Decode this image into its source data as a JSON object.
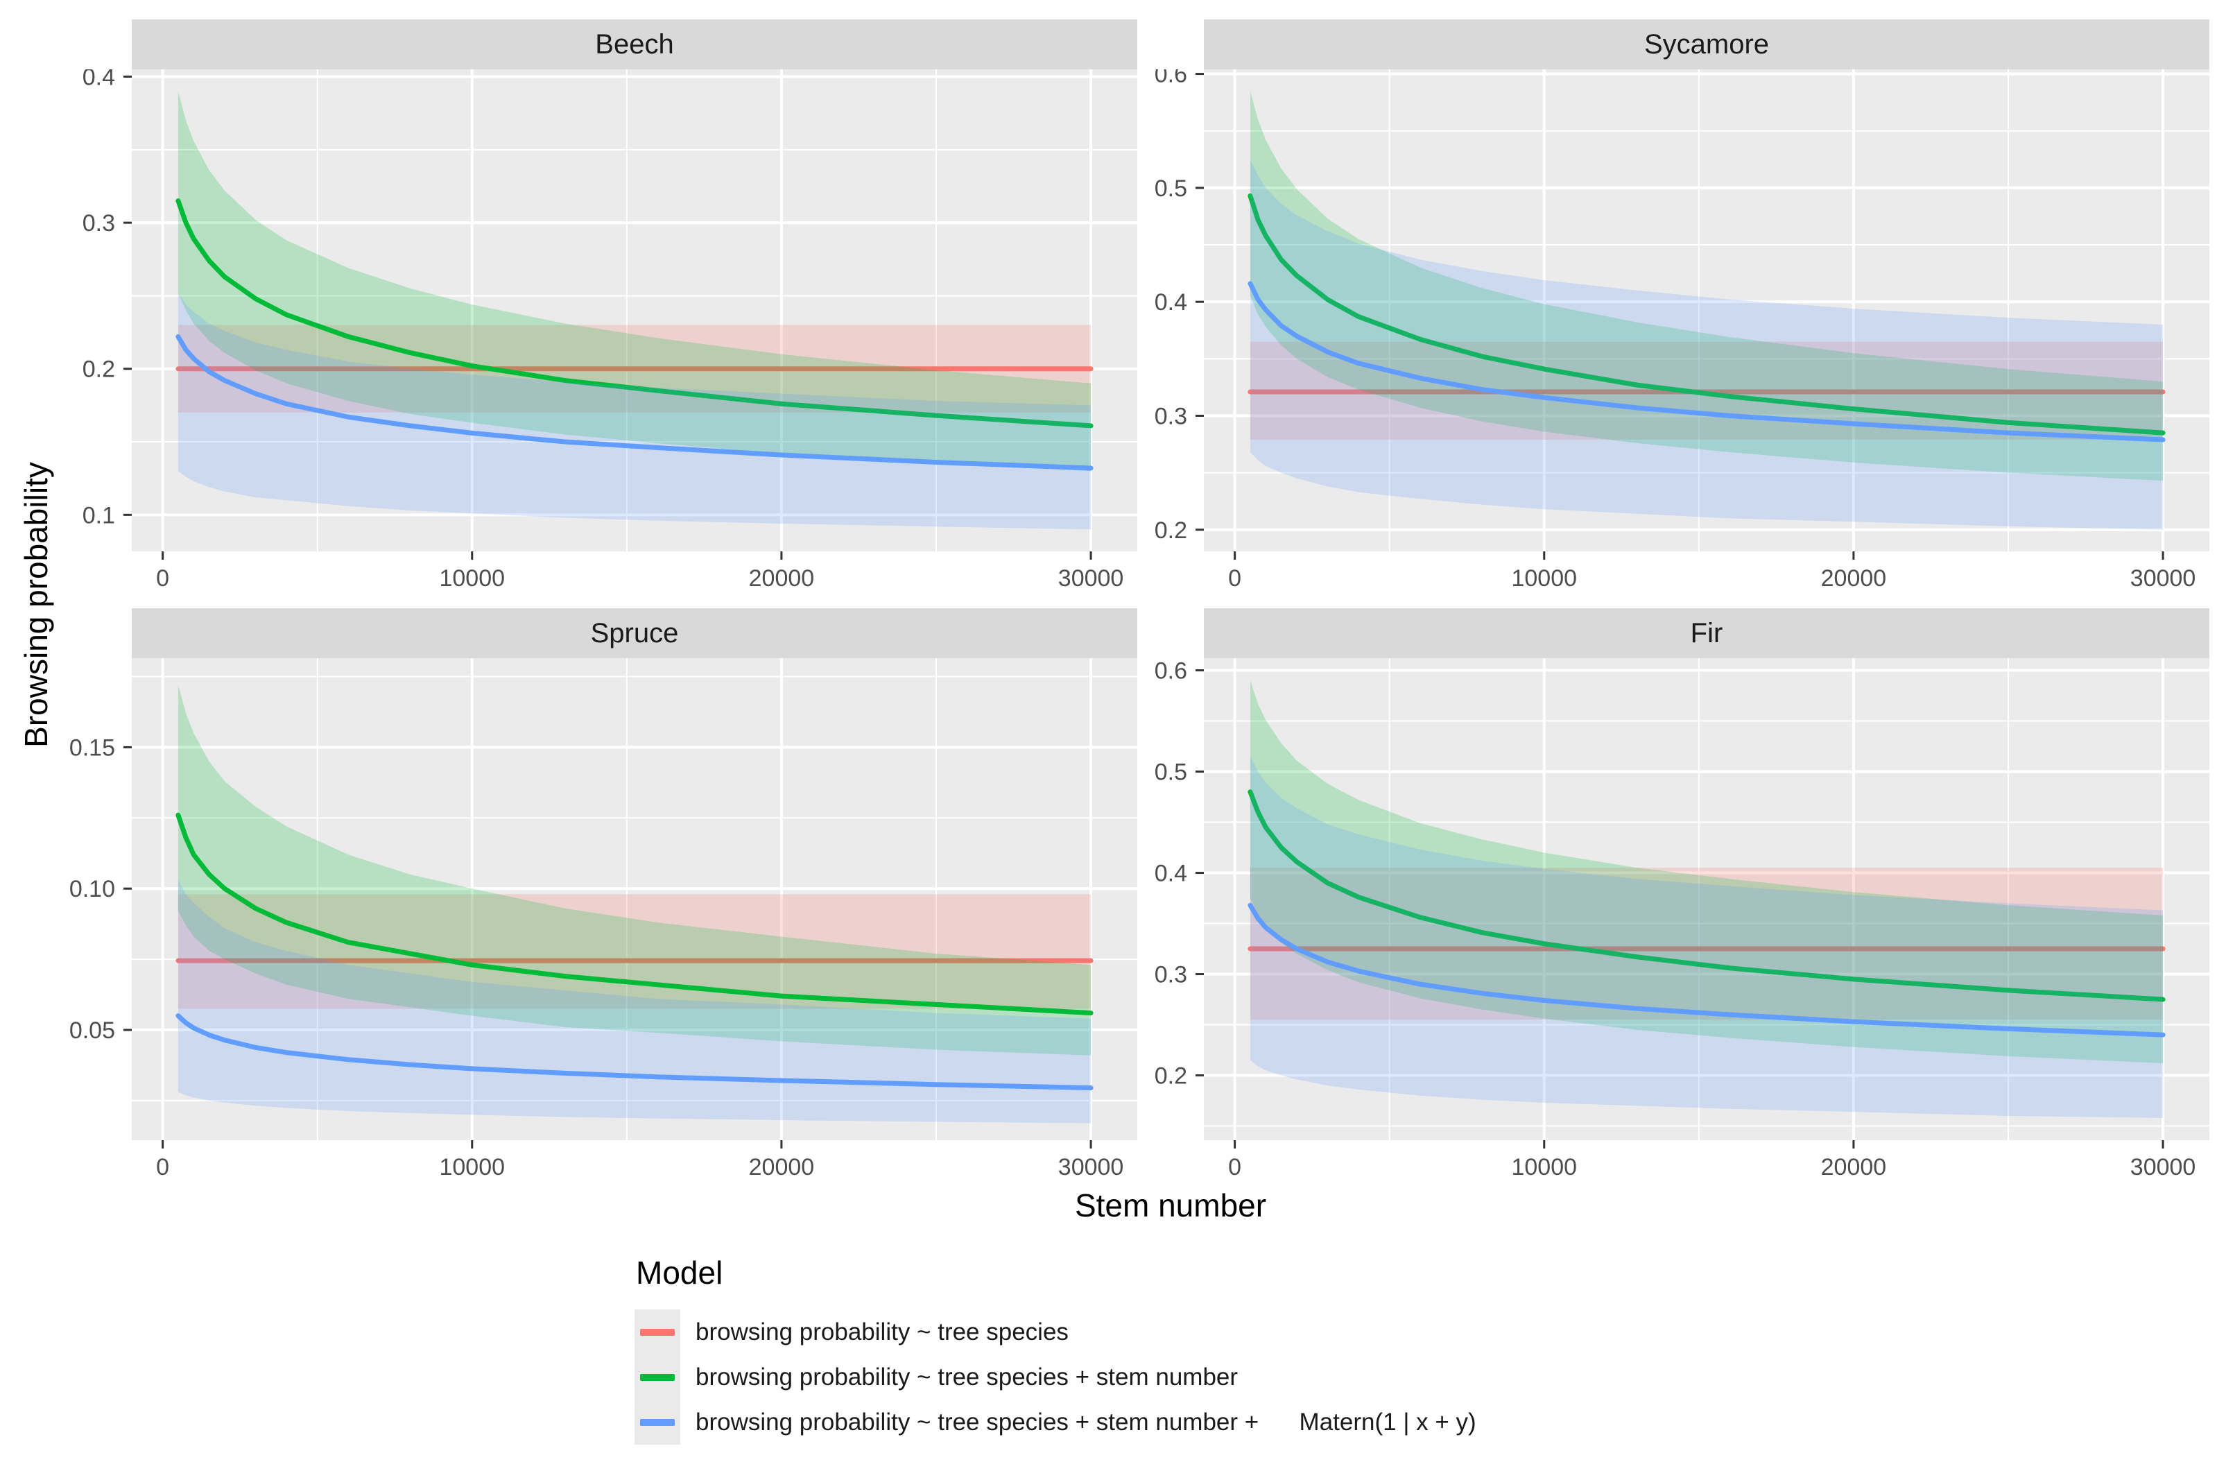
{
  "figure": {
    "y_axis_title": "Browsing probability",
    "x_axis_title": "Stem number",
    "colors": {
      "panel_bg": "#EBEBEB",
      "grid": "#FFFFFF",
      "strip_bg": "#D9D9D9",
      "tick_text": "#4D4D4D",
      "tick_mark": "#333333",
      "ribbon_alpha": 0.22,
      "line_width": 7
    },
    "legend": {
      "title": "Model",
      "items": [
        {
          "label": "browsing probability ~ tree species",
          "color": "#F8766D"
        },
        {
          "label": "browsing probability ~ tree species + stem number",
          "color": "#00BA38"
        },
        {
          "label": "browsing probability ~ tree species + stem number +      Matern(1 | x + y)",
          "color": "#619CFF"
        }
      ]
    }
  },
  "chart_data": [
    {
      "type": "line",
      "title": "Beech",
      "xlabel": "Stem number",
      "ylabel": "Browsing probability",
      "xlim": [
        -1000,
        31500
      ],
      "ylim": [
        0.075,
        0.405
      ],
      "xticks": [
        0,
        10000,
        20000,
        30000
      ],
      "xtick_labels": [
        "0",
        "10000",
        "20000",
        "30000"
      ],
      "yticks": [
        0.1,
        0.2,
        0.3,
        0.4
      ],
      "ytick_labels": [
        "0.1",
        "0.2",
        "0.3",
        "0.4"
      ],
      "x": [
        500,
        750,
        1000,
        1500,
        2000,
        3000,
        4000,
        6000,
        8000,
        10000,
        13000,
        16000,
        20000,
        25000,
        30000
      ],
      "series": [
        {
          "name": "browsing probability ~ tree species",
          "color": "#F8766D",
          "x": [
            500,
            30000
          ],
          "mid": [
            0.2,
            0.2
          ],
          "lo": [
            0.17,
            0.17
          ],
          "hi": [
            0.23,
            0.23
          ]
        },
        {
          "name": "browsing probability ~ tree species + stem number",
          "color": "#00BA38",
          "mid": [
            0.315,
            0.3,
            0.289,
            0.274,
            0.263,
            0.248,
            0.237,
            0.222,
            0.211,
            0.202,
            0.192,
            0.185,
            0.176,
            0.168,
            0.161
          ],
          "lo": [
            0.252,
            0.24,
            0.231,
            0.219,
            0.211,
            0.199,
            0.19,
            0.178,
            0.169,
            0.163,
            0.155,
            0.149,
            0.142,
            0.135,
            0.13
          ],
          "hi": [
            0.39,
            0.37,
            0.356,
            0.336,
            0.322,
            0.302,
            0.288,
            0.269,
            0.255,
            0.244,
            0.231,
            0.221,
            0.21,
            0.199,
            0.19
          ]
        },
        {
          "name": "browsing probability ~ tree species + stem number + Matern(1 | x + y)",
          "color": "#619CFF",
          "mid": [
            0.222,
            0.213,
            0.207,
            0.198,
            0.192,
            0.183,
            0.176,
            0.167,
            0.161,
            0.156,
            0.15,
            0.146,
            0.141,
            0.136,
            0.132
          ],
          "lo": [
            0.13,
            0.126,
            0.123,
            0.119,
            0.116,
            0.112,
            0.11,
            0.106,
            0.103,
            0.101,
            0.098,
            0.096,
            0.094,
            0.092,
            0.09
          ],
          "hi": [
            0.252,
            0.244,
            0.239,
            0.231,
            0.226,
            0.218,
            0.213,
            0.205,
            0.2,
            0.196,
            0.191,
            0.187,
            0.183,
            0.178,
            0.175
          ]
        }
      ]
    },
    {
      "type": "line",
      "title": "Sycamore",
      "xlabel": "Stem number",
      "ylabel": "Browsing probability",
      "xlim": [
        -1000,
        31500
      ],
      "ylim": [
        0.181,
        0.604
      ],
      "xticks": [
        0,
        10000,
        20000,
        30000
      ],
      "xtick_labels": [
        "0",
        "10000",
        "20000",
        "30000"
      ],
      "yticks": [
        0.2,
        0.3,
        0.4,
        0.5,
        0.6
      ],
      "ytick_labels": [
        "0.2",
        "0.3",
        "0.4",
        "0.5",
        "0.6"
      ],
      "x": [
        500,
        750,
        1000,
        1500,
        2000,
        3000,
        4000,
        6000,
        8000,
        10000,
        13000,
        16000,
        20000,
        25000,
        30000
      ],
      "series": [
        {
          "name": "browsing probability ~ tree species",
          "color": "#F8766D",
          "x": [
            500,
            30000
          ],
          "mid": [
            0.321,
            0.321
          ],
          "lo": [
            0.279,
            0.279
          ],
          "hi": [
            0.365,
            0.365
          ]
        },
        {
          "name": "browsing probability ~ tree species + stem number",
          "color": "#00BA38",
          "mid": [
            0.493,
            0.472,
            0.458,
            0.437,
            0.423,
            0.402,
            0.387,
            0.367,
            0.352,
            0.341,
            0.327,
            0.317,
            0.306,
            0.294,
            0.285
          ],
          "lo": [
            0.405,
            0.389,
            0.378,
            0.362,
            0.35,
            0.334,
            0.323,
            0.307,
            0.295,
            0.286,
            0.276,
            0.268,
            0.259,
            0.25,
            0.243
          ],
          "hi": [
            0.585,
            0.56,
            0.542,
            0.517,
            0.499,
            0.473,
            0.455,
            0.43,
            0.412,
            0.398,
            0.382,
            0.369,
            0.355,
            0.341,
            0.33
          ]
        },
        {
          "name": "browsing probability ~ tree species + stem number + Matern(1 | x + y)",
          "color": "#619CFF",
          "mid": [
            0.416,
            0.402,
            0.393,
            0.379,
            0.37,
            0.356,
            0.346,
            0.333,
            0.323,
            0.316,
            0.307,
            0.3,
            0.293,
            0.285,
            0.279
          ],
          "lo": [
            0.268,
            0.261,
            0.256,
            0.25,
            0.245,
            0.238,
            0.233,
            0.227,
            0.222,
            0.218,
            0.214,
            0.21,
            0.207,
            0.203,
            0.2
          ],
          "hi": [
            0.525,
            0.511,
            0.5,
            0.486,
            0.476,
            0.462,
            0.451,
            0.437,
            0.427,
            0.419,
            0.41,
            0.402,
            0.394,
            0.386,
            0.38
          ]
        }
      ]
    },
    {
      "type": "line",
      "title": "Spruce",
      "xlabel": "Stem number",
      "ylabel": "Browsing probability",
      "xlim": [
        -1000,
        31500
      ],
      "ylim": [
        0.011,
        0.1815
      ],
      "xticks": [
        0,
        10000,
        20000,
        30000
      ],
      "xtick_labels": [
        "0",
        "10000",
        "20000",
        "30000"
      ],
      "yticks": [
        0.05,
        0.1,
        0.15
      ],
      "ytick_labels": [
        "0.05",
        "0.10",
        "0.15"
      ],
      "x": [
        500,
        750,
        1000,
        1500,
        2000,
        3000,
        4000,
        6000,
        8000,
        10000,
        13000,
        16000,
        20000,
        25000,
        30000
      ],
      "series": [
        {
          "name": "browsing probability ~ tree species",
          "color": "#F8766D",
          "x": [
            500,
            30000
          ],
          "mid": [
            0.0745,
            0.0745
          ],
          "lo": [
            0.0575,
            0.0575
          ],
          "hi": [
            0.098,
            0.098
          ]
        },
        {
          "name": "browsing probability ~ tree species + stem number",
          "color": "#00BA38",
          "mid": [
            0.126,
            0.118,
            0.112,
            0.105,
            0.1,
            0.093,
            0.088,
            0.081,
            0.077,
            0.073,
            0.069,
            0.066,
            0.062,
            0.059,
            0.056
          ],
          "lo": [
            0.092,
            0.087,
            0.083,
            0.078,
            0.075,
            0.07,
            0.066,
            0.061,
            0.058,
            0.055,
            0.051,
            0.049,
            0.046,
            0.043,
            0.041
          ],
          "hi": [
            0.172,
            0.162,
            0.155,
            0.145,
            0.138,
            0.129,
            0.122,
            0.112,
            0.105,
            0.1,
            0.093,
            0.088,
            0.083,
            0.077,
            0.073
          ]
        },
        {
          "name": "browsing probability ~ tree species + stem number + Matern(1 | x + y)",
          "color": "#619CFF",
          "mid": [
            0.055,
            0.0525,
            0.0507,
            0.0482,
            0.0464,
            0.0438,
            0.042,
            0.0395,
            0.0377,
            0.0363,
            0.0347,
            0.0334,
            0.0321,
            0.0307,
            0.0295
          ],
          "lo": [
            0.028,
            0.0269,
            0.0261,
            0.025,
            0.0243,
            0.0232,
            0.0224,
            0.0213,
            0.0206,
            0.02,
            0.0192,
            0.0187,
            0.0181,
            0.0175,
            0.017
          ],
          "hi": [
            0.103,
            0.098,
            0.095,
            0.09,
            0.086,
            0.081,
            0.078,
            0.073,
            0.07,
            0.067,
            0.064,
            0.061,
            0.059,
            0.056,
            0.054
          ]
        }
      ]
    },
    {
      "type": "line",
      "title": "Fir",
      "xlabel": "Stem number",
      "ylabel": "Browsing probability",
      "xlim": [
        -1000,
        31500
      ],
      "ylim": [
        0.136,
        0.612
      ],
      "xticks": [
        0,
        10000,
        20000,
        30000
      ],
      "xtick_labels": [
        "0",
        "10000",
        "20000",
        "30000"
      ],
      "yticks": [
        0.2,
        0.3,
        0.4,
        0.5,
        0.6
      ],
      "ytick_labels": [
        "0.2",
        "0.3",
        "0.4",
        "0.5",
        "0.6"
      ],
      "x": [
        500,
        750,
        1000,
        1500,
        2000,
        3000,
        4000,
        6000,
        8000,
        10000,
        13000,
        16000,
        20000,
        25000,
        30000
      ],
      "series": [
        {
          "name": "browsing probability ~ tree species",
          "color": "#F8766D",
          "x": [
            500,
            30000
          ],
          "mid": [
            0.325,
            0.325
          ],
          "lo": [
            0.255,
            0.255
          ],
          "hi": [
            0.405,
            0.405
          ]
        },
        {
          "name": "browsing probability ~ tree species + stem number",
          "color": "#00BA38",
          "mid": [
            0.48,
            0.46,
            0.445,
            0.425,
            0.411,
            0.39,
            0.376,
            0.356,
            0.341,
            0.33,
            0.317,
            0.306,
            0.295,
            0.284,
            0.275
          ],
          "lo": [
            0.375,
            0.359,
            0.347,
            0.331,
            0.32,
            0.304,
            0.292,
            0.276,
            0.265,
            0.256,
            0.245,
            0.237,
            0.228,
            0.219,
            0.212
          ],
          "hi": [
            0.59,
            0.567,
            0.551,
            0.528,
            0.511,
            0.488,
            0.472,
            0.449,
            0.433,
            0.42,
            0.405,
            0.394,
            0.381,
            0.368,
            0.358
          ]
        },
        {
          "name": "browsing probability ~ tree species + stem number + Matern(1 | x + y)",
          "color": "#619CFF",
          "mid": [
            0.368,
            0.355,
            0.346,
            0.334,
            0.325,
            0.312,
            0.303,
            0.29,
            0.281,
            0.274,
            0.266,
            0.26,
            0.253,
            0.246,
            0.24
          ],
          "lo": [
            0.215,
            0.209,
            0.205,
            0.2,
            0.196,
            0.19,
            0.186,
            0.18,
            0.176,
            0.173,
            0.17,
            0.167,
            0.164,
            0.16,
            0.158
          ],
          "hi": [
            0.515,
            0.5,
            0.489,
            0.474,
            0.464,
            0.448,
            0.438,
            0.423,
            0.412,
            0.404,
            0.394,
            0.387,
            0.378,
            0.37,
            0.363
          ]
        }
      ]
    }
  ]
}
